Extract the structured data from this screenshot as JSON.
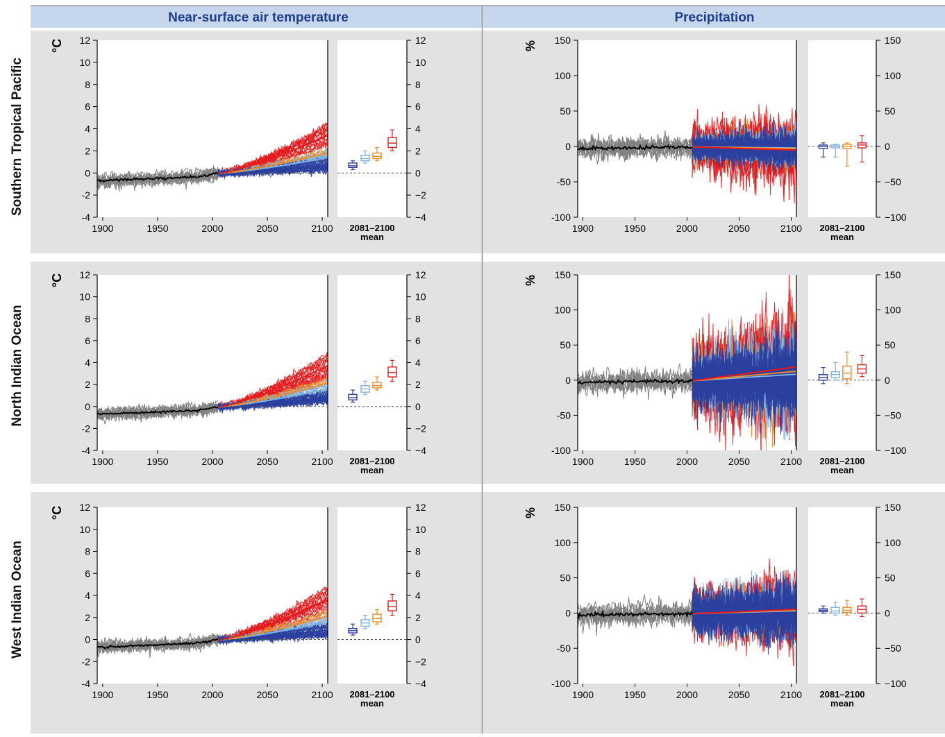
{
  "columns": [
    "Near-surface air temperature",
    "Precipitation"
  ],
  "rows": [
    "Southern Tropical Pacific",
    "North Indian Ocean",
    "West Indian Ocean"
  ],
  "colors": {
    "historical": "#808080",
    "obs_mean": "#000000",
    "rcp26": "#2b3f9e",
    "rcp45": "#7fb2e0",
    "rcp60": "#f08a24",
    "rcp85": "#e41a1c",
    "panel_bg": "#e1e2e4"
  },
  "box_label": [
    "2081–2100",
    "mean"
  ],
  "chart_data": [
    {
      "type": "line",
      "row": "Southern Tropical Pacific",
      "variable": "Near-surface air temperature",
      "ylabel": "°C",
      "xlim": [
        1895,
        2105
      ],
      "ylim": [
        -4,
        12
      ],
      "xticks": [
        1900,
        1950,
        2000,
        2050,
        2100
      ],
      "yticks": [
        -4,
        -2,
        0,
        2,
        4,
        6,
        8,
        10,
        12
      ],
      "ytick_labels_right": [
        "−4",
        "−2",
        "0",
        "2",
        "4",
        "6",
        "8",
        "10",
        "12"
      ],
      "historical_range": [
        1895,
        2005
      ],
      "projection_2100": {
        "rcp26": 0.7,
        "rcp45": 1.3,
        "rcp60": 1.7,
        "rcp85": 3.2
      },
      "spread_2100": {
        "rcp26": 1.0,
        "rcp45": 1.0,
        "rcp60": 1.0,
        "rcp85": 2.0
      },
      "boxes_2081_2100": [
        {
          "scenario": "rcp26",
          "whisker_low": 0.3,
          "q1": 0.5,
          "median": 0.65,
          "q3": 0.9,
          "whisker_high": 1.1
        },
        {
          "scenario": "rcp45",
          "whisker_low": 0.9,
          "q1": 1.1,
          "median": 1.3,
          "q3": 1.6,
          "whisker_high": 2.0
        },
        {
          "scenario": "rcp60",
          "whisker_low": 1.1,
          "q1": 1.3,
          "median": 1.5,
          "q3": 1.8,
          "whisker_high": 2.3
        },
        {
          "scenario": "rcp85",
          "whisker_low": 2.0,
          "q1": 2.3,
          "median": 2.7,
          "q3": 3.2,
          "whisker_high": 3.9
        }
      ]
    },
    {
      "type": "line",
      "row": "Southern Tropical Pacific",
      "variable": "Precipitation",
      "ylabel": "%",
      "xlim": [
        1895,
        2105
      ],
      "ylim": [
        -100,
        150
      ],
      "xticks": [
        1900,
        1950,
        2000,
        2050,
        2100
      ],
      "yticks": [
        -100,
        -50,
        0,
        50,
        100,
        150
      ],
      "ytick_labels_right": [
        "−100",
        "−50",
        "0",
        "50",
        "100",
        "150"
      ],
      "historical_range": [
        1895,
        2005
      ],
      "projection_2100": {
        "rcp26": -2,
        "rcp45": -2,
        "rcp60": -3,
        "rcp85": -5
      },
      "spread_2100": {
        "rcp26": 18,
        "rcp45": 20,
        "rcp60": 25,
        "rcp85": 35
      },
      "boxes_2081_2100": [
        {
          "scenario": "rcp26",
          "whisker_low": -15,
          "q1": -3,
          "median": 0,
          "q3": 2,
          "whisker_high": 5
        },
        {
          "scenario": "rcp45",
          "whisker_low": -15,
          "q1": -2,
          "median": 0,
          "q3": 2,
          "whisker_high": 3
        },
        {
          "scenario": "rcp60",
          "whisker_low": -28,
          "q1": -3,
          "median": 0,
          "q3": 3,
          "whisker_high": 5
        },
        {
          "scenario": "rcp85",
          "whisker_low": -22,
          "q1": -2,
          "median": 2,
          "q3": 5,
          "whisker_high": 15
        }
      ]
    },
    {
      "type": "line",
      "row": "North Indian Ocean",
      "variable": "Near-surface air temperature",
      "ylabel": "°C",
      "xlim": [
        1895,
        2105
      ],
      "ylim": [
        -4,
        12
      ],
      "xticks": [
        1900,
        1950,
        2000,
        2050,
        2100
      ],
      "yticks": [
        -4,
        -2,
        0,
        2,
        4,
        6,
        8,
        10,
        12
      ],
      "ytick_labels_right": [
        "−4",
        "−2",
        "0",
        "2",
        "4",
        "6",
        "8",
        "10",
        "12"
      ],
      "historical_range": [
        1895,
        2005
      ],
      "projection_2100": {
        "rcp26": 0.8,
        "rcp45": 1.5,
        "rcp60": 2.0,
        "rcp85": 3.5
      },
      "spread_2100": {
        "rcp26": 1.0,
        "rcp45": 1.0,
        "rcp60": 1.0,
        "rcp85": 2.2
      },
      "boxes_2081_2100": [
        {
          "scenario": "rcp26",
          "whisker_low": 0.4,
          "q1": 0.6,
          "median": 0.8,
          "q3": 1.1,
          "whisker_high": 1.5
        },
        {
          "scenario": "rcp45",
          "whisker_low": 1.1,
          "q1": 1.3,
          "median": 1.6,
          "q3": 1.9,
          "whisker_high": 2.3
        },
        {
          "scenario": "rcp60",
          "whisker_low": 1.5,
          "q1": 1.7,
          "median": 1.9,
          "q3": 2.2,
          "whisker_high": 2.7
        },
        {
          "scenario": "rcp85",
          "whisker_low": 2.3,
          "q1": 2.7,
          "median": 3.1,
          "q3": 3.6,
          "whisker_high": 4.2
        }
      ]
    },
    {
      "type": "line",
      "row": "North Indian Ocean",
      "variable": "Precipitation",
      "ylabel": "%",
      "xlim": [
        1895,
        2105
      ],
      "ylim": [
        -100,
        150
      ],
      "xticks": [
        1900,
        1950,
        2000,
        2050,
        2100
      ],
      "yticks": [
        -100,
        -50,
        0,
        50,
        100,
        150
      ],
      "ytick_labels_right": [
        "−100",
        "−50",
        "0",
        "50",
        "100",
        "150"
      ],
      "historical_range": [
        1895,
        2005
      ],
      "projection_2100": {
        "rcp26": 3,
        "rcp45": 8,
        "rcp60": 12,
        "rcp85": 18
      },
      "spread_2100": {
        "rcp26": 40,
        "rcp45": 45,
        "rcp60": 50,
        "rcp85": 60
      },
      "boxes_2081_2100": [
        {
          "scenario": "rcp26",
          "whisker_low": -5,
          "q1": 0,
          "median": 4,
          "q3": 8,
          "whisker_high": 18
        },
        {
          "scenario": "rcp45",
          "whisker_low": 0,
          "q1": 4,
          "median": 8,
          "q3": 12,
          "whisker_high": 25
        },
        {
          "scenario": "rcp60",
          "whisker_low": -5,
          "q1": 2,
          "median": 10,
          "q3": 20,
          "whisker_high": 40
        },
        {
          "scenario": "rcp85",
          "whisker_low": 5,
          "q1": 10,
          "median": 16,
          "q3": 22,
          "whisker_high": 35
        }
      ]
    },
    {
      "type": "line",
      "row": "West Indian Ocean",
      "variable": "Near-surface air temperature",
      "ylabel": "°C",
      "xlim": [
        1895,
        2105
      ],
      "ylim": [
        -4,
        12
      ],
      "xticks": [
        1900,
        1950,
        2000,
        2050,
        2100
      ],
      "yticks": [
        -4,
        -2,
        0,
        2,
        4,
        6,
        8,
        10,
        12
      ],
      "ytick_labels_right": [
        "−4",
        "−2",
        "0",
        "2",
        "4",
        "6",
        "8",
        "10",
        "12"
      ],
      "historical_range": [
        1895,
        2005
      ],
      "projection_2100": {
        "rcp26": 0.8,
        "rcp45": 1.5,
        "rcp60": 2.0,
        "rcp85": 3.4
      },
      "spread_2100": {
        "rcp26": 1.0,
        "rcp45": 1.0,
        "rcp60": 1.0,
        "rcp85": 2.2
      },
      "boxes_2081_2100": [
        {
          "scenario": "rcp26",
          "whisker_low": 0.4,
          "q1": 0.6,
          "median": 0.8,
          "q3": 1.0,
          "whisker_high": 1.4
        },
        {
          "scenario": "rcp45",
          "whisker_low": 1.0,
          "q1": 1.2,
          "median": 1.5,
          "q3": 1.8,
          "whisker_high": 2.2
        },
        {
          "scenario": "rcp60",
          "whisker_low": 1.4,
          "q1": 1.6,
          "median": 1.9,
          "q3": 2.3,
          "whisker_high": 2.7
        },
        {
          "scenario": "rcp85",
          "whisker_low": 2.2,
          "q1": 2.6,
          "median": 3.0,
          "q3": 3.5,
          "whisker_high": 4.1
        }
      ]
    },
    {
      "type": "line",
      "row": "West Indian Ocean",
      "variable": "Precipitation",
      "ylabel": "%",
      "xlim": [
        1895,
        2105
      ],
      "ylim": [
        -100,
        150
      ],
      "xticks": [
        1900,
        1950,
        2000,
        2050,
        2100
      ],
      "yticks": [
        -100,
        -50,
        0,
        50,
        100,
        150
      ],
      "ytick_labels_right": [
        "−100",
        "−50",
        "0",
        "50",
        "100",
        "150"
      ],
      "historical_range": [
        1895,
        2005
      ],
      "projection_2100": {
        "rcp26": 3,
        "rcp45": 3,
        "rcp60": 4,
        "rcp85": 5
      },
      "spread_2100": {
        "rcp26": 30,
        "rcp45": 30,
        "rcp60": 30,
        "rcp85": 35
      },
      "boxes_2081_2100": [
        {
          "scenario": "rcp26",
          "whisker_low": 0,
          "q1": 2,
          "median": 4,
          "q3": 6,
          "whisker_high": 10
        },
        {
          "scenario": "rcp45",
          "whisker_low": -3,
          "q1": 0,
          "median": 3,
          "q3": 8,
          "whisker_high": 15
        },
        {
          "scenario": "rcp60",
          "whisker_low": -3,
          "q1": 1,
          "median": 4,
          "q3": 8,
          "whisker_high": 18
        },
        {
          "scenario": "rcp85",
          "whisker_low": -5,
          "q1": 0,
          "median": 5,
          "q3": 10,
          "whisker_high": 20
        }
      ]
    }
  ]
}
